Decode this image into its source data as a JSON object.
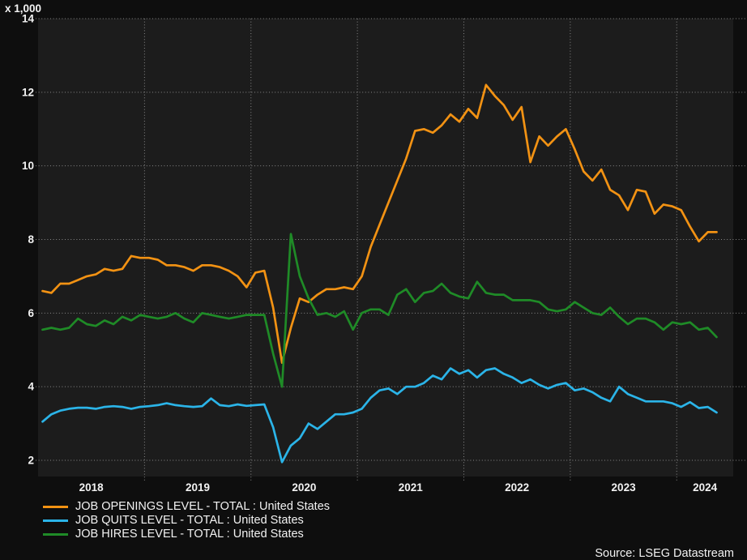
{
  "header": {
    "axis_multiplier_label": "x 1,000"
  },
  "footer": {
    "source_label": "Source: LSEG Datastream"
  },
  "colors": {
    "background": "#0e0e0e",
    "plot_background": "#1c1c1c",
    "grid": "#9c9c9c",
    "text": "#f2f2f2",
    "openings": "#F29213",
    "quits": "#2BB4E8",
    "hires": "#1F8B27"
  },
  "chart_data": {
    "type": "line",
    "title": "",
    "xlabel": "",
    "ylabel": "x 1,000",
    "x_unit": "month",
    "x_start": "2018-01",
    "x_end": "2024-05",
    "x_tick_labels": [
      "2018",
      "2019",
      "2020",
      "2021",
      "2022",
      "2023",
      "2024"
    ],
    "y_ticks": [
      14,
      12,
      10,
      8,
      6,
      4,
      2
    ],
    "ylim": [
      1.55,
      14
    ],
    "grid": "dotted",
    "legend_position": "bottom-left",
    "series": [
      {
        "name": "JOB OPENINGS LEVEL - TOTAL : United States",
        "color": "#F29213",
        "values": [
          6.6,
          6.55,
          6.8,
          6.8,
          6.9,
          7.0,
          7.05,
          7.2,
          7.15,
          7.2,
          7.55,
          7.5,
          7.5,
          7.45,
          7.3,
          7.3,
          7.25,
          7.15,
          7.3,
          7.3,
          7.25,
          7.15,
          7.0,
          6.7,
          7.1,
          7.15,
          6.15,
          4.65,
          5.6,
          6.4,
          6.3,
          6.5,
          6.65,
          6.65,
          6.7,
          6.65,
          7.0,
          7.8,
          8.4,
          9.0,
          9.6,
          10.2,
          10.95,
          11.0,
          10.9,
          11.1,
          11.4,
          11.2,
          11.55,
          11.3,
          12.2,
          11.9,
          11.65,
          11.25,
          11.6,
          10.1,
          10.8,
          10.55,
          10.8,
          11.0,
          10.45,
          9.85,
          9.6,
          9.9,
          9.35,
          9.2,
          8.8,
          9.35,
          9.3,
          8.7,
          8.95,
          8.9,
          8.8,
          8.35,
          7.95,
          8.2,
          8.2
        ]
      },
      {
        "name": "JOB QUITS LEVEL - TOTAL : United States",
        "color": "#2BB4E8",
        "values": [
          3.05,
          3.25,
          3.35,
          3.4,
          3.43,
          3.43,
          3.4,
          3.45,
          3.47,
          3.45,
          3.4,
          3.45,
          3.47,
          3.5,
          3.55,
          3.5,
          3.47,
          3.45,
          3.47,
          3.68,
          3.5,
          3.47,
          3.52,
          3.48,
          3.5,
          3.52,
          2.9,
          1.95,
          2.4,
          2.6,
          3.0,
          2.85,
          3.05,
          3.25,
          3.25,
          3.3,
          3.4,
          3.7,
          3.9,
          3.95,
          3.8,
          4.0,
          4.0,
          4.1,
          4.3,
          4.2,
          4.5,
          4.35,
          4.45,
          4.25,
          4.45,
          4.5,
          4.35,
          4.25,
          4.1,
          4.2,
          4.05,
          3.95,
          4.05,
          4.1,
          3.9,
          3.95,
          3.85,
          3.7,
          3.6,
          4.0,
          3.8,
          3.7,
          3.6,
          3.6,
          3.6,
          3.55,
          3.45,
          3.58,
          3.42,
          3.45,
          3.3
        ]
      },
      {
        "name": "JOB HIRES LEVEL - TOTAL : United States",
        "color": "#1F8B27",
        "values": [
          5.55,
          5.6,
          5.55,
          5.6,
          5.85,
          5.7,
          5.65,
          5.8,
          5.7,
          5.9,
          5.8,
          5.95,
          5.9,
          5.85,
          5.9,
          6.0,
          5.85,
          5.75,
          6.0,
          5.95,
          5.9,
          5.85,
          5.9,
          5.95,
          5.95,
          5.95,
          4.9,
          4.0,
          8.15,
          7.0,
          6.4,
          5.95,
          6.0,
          5.9,
          6.05,
          5.55,
          6.0,
          6.1,
          6.1,
          5.95,
          6.5,
          6.65,
          6.3,
          6.55,
          6.6,
          6.8,
          6.55,
          6.45,
          6.4,
          6.85,
          6.55,
          6.5,
          6.5,
          6.35,
          6.35,
          6.35,
          6.3,
          6.1,
          6.05,
          6.1,
          6.3,
          6.15,
          6.0,
          5.95,
          6.15,
          5.9,
          5.7,
          5.85,
          5.85,
          5.75,
          5.55,
          5.75,
          5.7,
          5.75,
          5.55,
          5.6,
          5.35
        ]
      }
    ]
  }
}
